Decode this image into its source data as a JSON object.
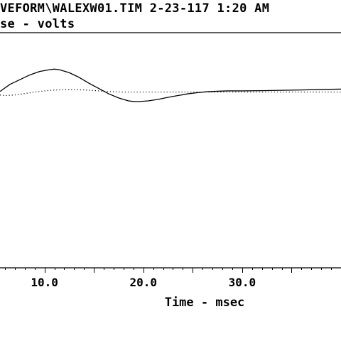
{
  "header": {
    "line1": "VEFORM\\WALEXW01.TIM 2-23-117 1:20 AM",
    "line2": "se - volts"
  },
  "chart_data": {
    "type": "line",
    "title": "VEFORM\\WALEXW01.TIM 2-23-117 1:20 AM",
    "ylabel": "se - volts",
    "xlabel": "Time - msec",
    "xlim": [
      5.5,
      40.0
    ],
    "ylim": [
      -1.0,
      1.0
    ],
    "x_ticks": [
      10.0,
      20.0,
      30.0
    ],
    "x_tick_labels": [
      "10.0",
      "20.0",
      "30.0"
    ],
    "grid": false,
    "series": [
      {
        "style": "solid",
        "x": [
          5.5,
          6.5,
          7.5,
          8.5,
          9.5,
          10.5,
          11.0,
          11.5,
          12.5,
          13.5,
          14.5,
          15.5,
          16.5,
          17.5,
          18.5,
          19.0,
          19.5,
          20.5,
          21.5,
          22.5,
          23.5,
          24.5,
          25.5,
          26.5,
          27.5,
          28.5,
          30.0,
          32.0,
          34.0,
          36.0,
          38.0,
          40.0
        ],
        "values": [
          0.5,
          0.56,
          0.6,
          0.64,
          0.67,
          0.685,
          0.69,
          0.685,
          0.66,
          0.62,
          0.57,
          0.525,
          0.48,
          0.445,
          0.42,
          0.415,
          0.414,
          0.42,
          0.433,
          0.45,
          0.465,
          0.48,
          0.49,
          0.498,
          0.502,
          0.505,
          0.505,
          0.507,
          0.51,
          0.513,
          0.517,
          0.52
        ]
      },
      {
        "style": "dotted",
        "x": [
          5.5,
          6.0,
          7.0,
          8.0,
          9.0,
          10.0,
          11.0,
          12.0,
          13.0,
          14.0,
          15.0,
          16.0,
          17.0,
          18.0,
          19.0,
          20.0,
          25.0,
          30.0,
          35.0,
          40.0
        ],
        "values": [
          0.47,
          0.465,
          0.47,
          0.482,
          0.495,
          0.505,
          0.512,
          0.515,
          0.515,
          0.513,
          0.508,
          0.502,
          0.497,
          0.495,
          0.495,
          0.495,
          0.495,
          0.495,
          0.495,
          0.495
        ]
      }
    ]
  }
}
